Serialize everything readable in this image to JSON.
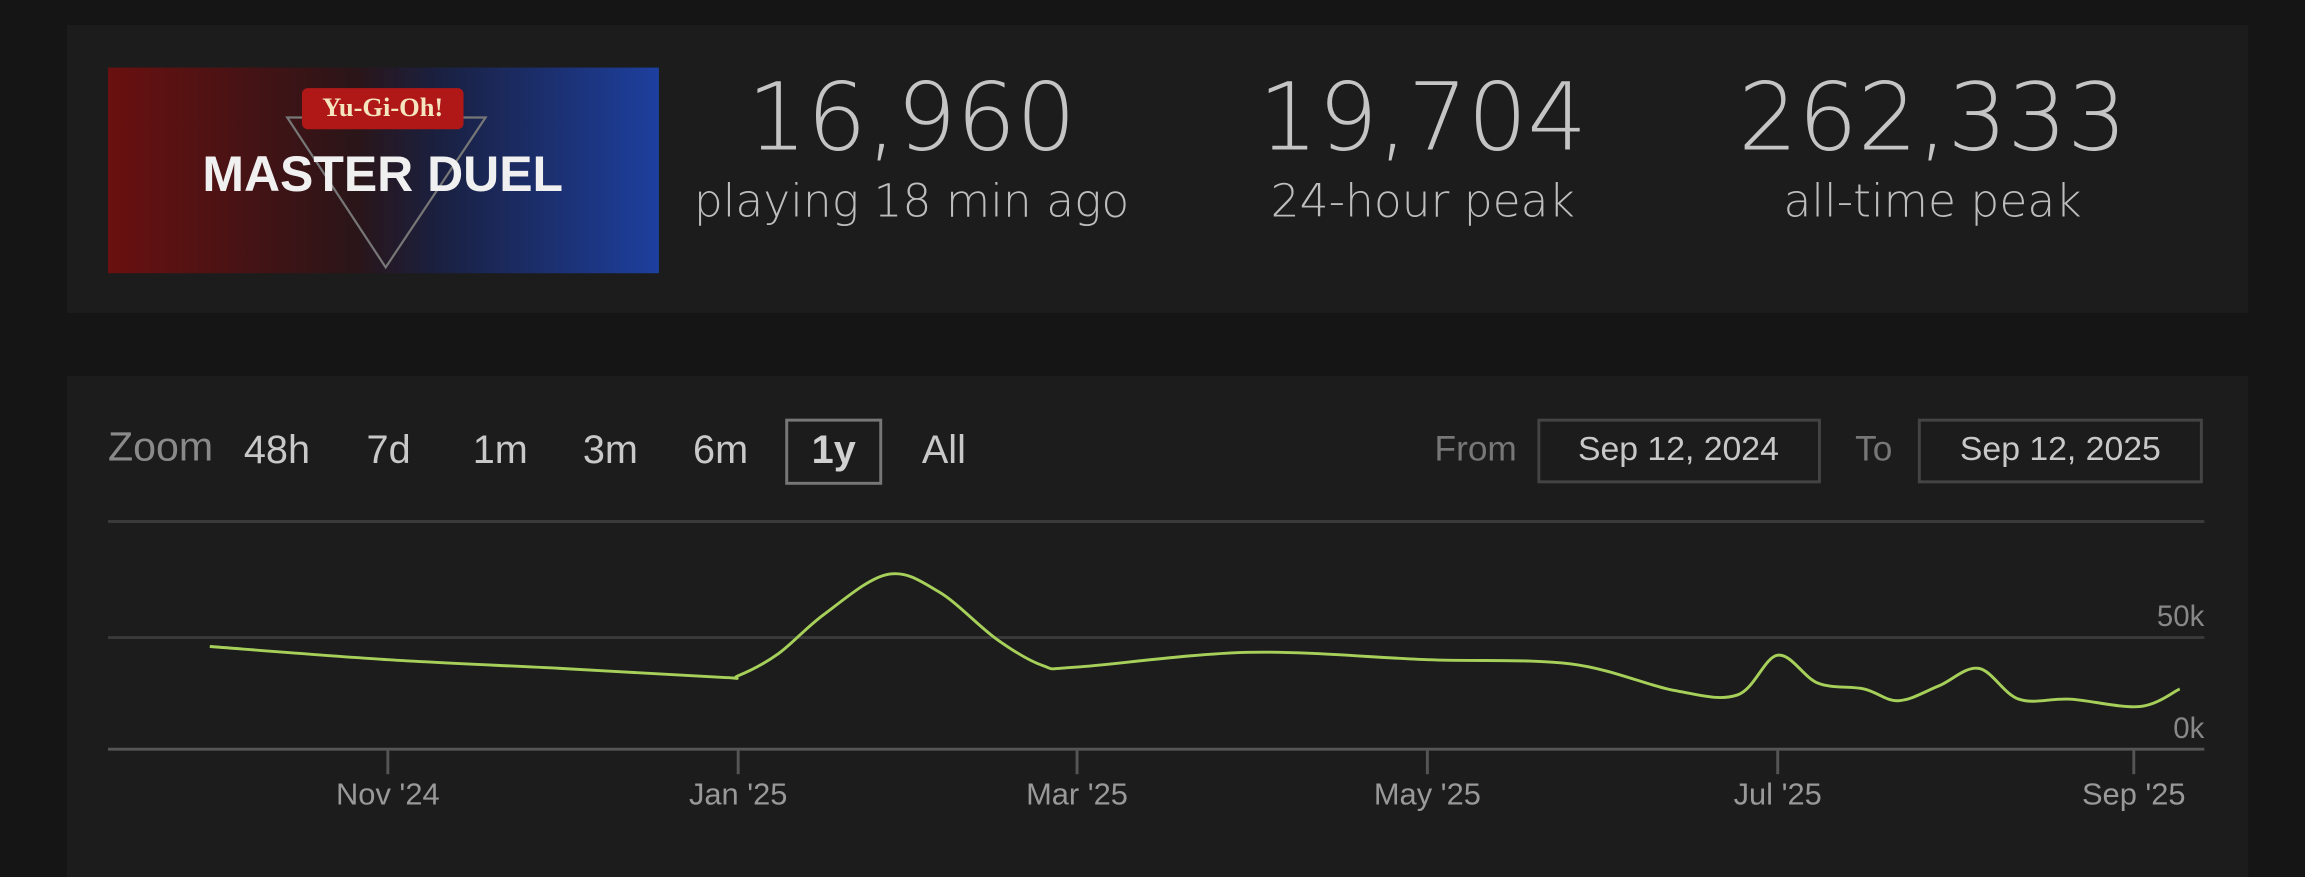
{
  "header": {
    "logo_top": "Yu-Gi-Oh!",
    "logo_title": "MASTER DUEL"
  },
  "stats": [
    {
      "value": "16,960",
      "label": "playing 18 min ago"
    },
    {
      "value": "19,704",
      "label": "24-hour peak"
    },
    {
      "value": "262,333",
      "label": "all-time peak"
    }
  ],
  "controls": {
    "zoom_label": "Zoom",
    "zoom_options": [
      {
        "label": "48h"
      },
      {
        "label": "7d"
      },
      {
        "label": "1m"
      },
      {
        "label": "3m"
      },
      {
        "label": "6m"
      },
      {
        "label": "1y",
        "active": true
      },
      {
        "label": "All"
      }
    ],
    "from_label": "From",
    "from_date": "Sep 12, 2024",
    "to_label": "To",
    "to_date": "Sep 12, 2025"
  },
  "chart_data": {
    "type": "line",
    "color": "#a6d05a",
    "x": [
      "2024-10-01",
      "2024-11-01",
      "2024-12-01",
      "2024-12-29",
      "2025-01-01",
      "2025-01-08",
      "2025-01-16",
      "2025-01-27",
      "2025-02-05",
      "2025-02-15",
      "2025-02-23",
      "2025-03-01",
      "2025-03-31",
      "2025-05-01",
      "2025-05-26",
      "2025-06-13",
      "2025-06-24",
      "2025-07-01",
      "2025-07-08",
      "2025-07-16",
      "2025-07-22",
      "2025-07-29",
      "2025-08-05",
      "2025-08-12",
      "2025-08-21",
      "2025-09-02",
      "2025-09-09"
    ],
    "values": [
      46000,
      40100,
      36200,
      32200,
      32900,
      42800,
      60500,
      78300,
      70400,
      49300,
      37500,
      36800,
      43400,
      40100,
      38200,
      26300,
      24300,
      42100,
      29600,
      27000,
      21700,
      28300,
      36200,
      22400,
      22400,
      19100,
      27000
    ],
    "xlim": [
      "2024-09-12",
      "2025-09-12"
    ],
    "ylim": [
      0,
      102000
    ],
    "xticks": [
      {
        "value": "2024-11-01",
        "label": "Nov '24"
      },
      {
        "value": "2025-01-01",
        "label": "Jan '25"
      },
      {
        "value": "2025-03-01",
        "label": "Mar '25"
      },
      {
        "value": "2025-05-01",
        "label": "May '25"
      },
      {
        "value": "2025-07-01",
        "label": "Jul '25"
      },
      {
        "value": "2025-09-01",
        "label": "Sep '25"
      }
    ],
    "yticks": [
      {
        "value": 0,
        "label": "0k"
      },
      {
        "value": 50000,
        "label": "50k"
      }
    ],
    "grid": true
  }
}
